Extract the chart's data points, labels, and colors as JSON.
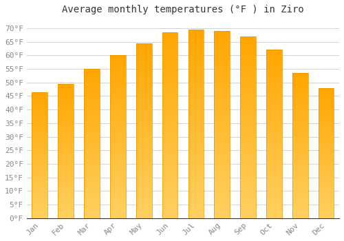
{
  "title": "Average monthly temperatures (°F ) in Ziro",
  "months": [
    "Jan",
    "Feb",
    "Mar",
    "Apr",
    "May",
    "Jun",
    "Jul",
    "Aug",
    "Sep",
    "Oct",
    "Nov",
    "Dec"
  ],
  "values": [
    46.5,
    49.5,
    55,
    60,
    64.5,
    68.5,
    69.5,
    69,
    67,
    62,
    53.5,
    48
  ],
  "bar_color_top": "#FFA500",
  "bar_color_bottom": "#FFD060",
  "bar_edge_color": "#E89000",
  "background_color": "#FFFFFF",
  "grid_color": "#CCCCCC",
  "text_color": "#888888",
  "axis_color": "#333333",
  "ylim": [
    0,
    73
  ],
  "yticks": [
    0,
    5,
    10,
    15,
    20,
    25,
    30,
    35,
    40,
    45,
    50,
    55,
    60,
    65,
    70
  ],
  "ylabel_suffix": "°F",
  "title_fontsize": 10,
  "tick_fontsize": 8,
  "bar_width": 0.6
}
